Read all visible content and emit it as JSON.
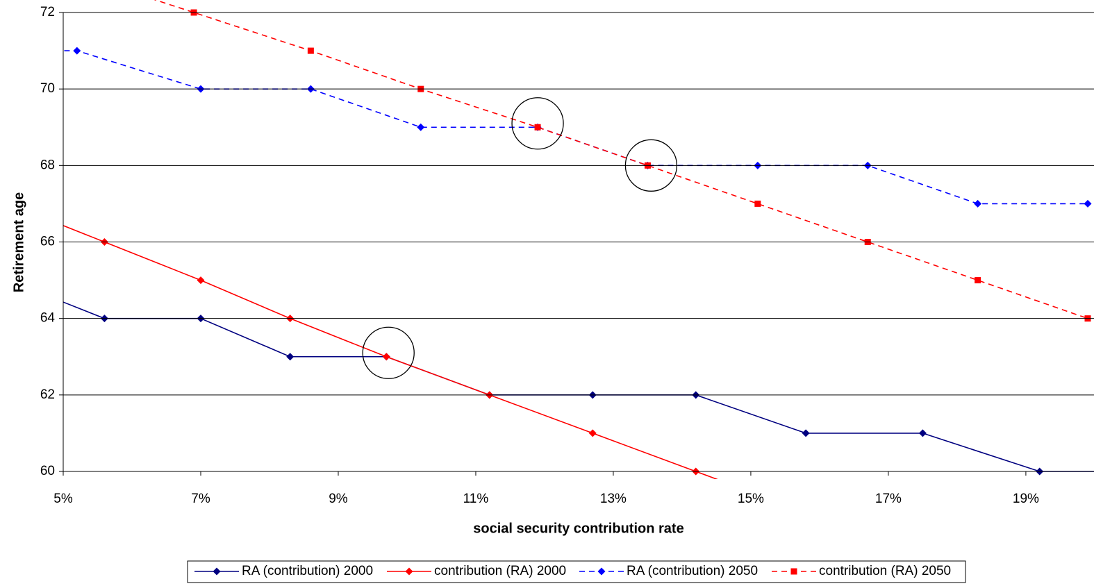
{
  "chart_data": {
    "type": "line",
    "x_label": "social security contribution rate",
    "y_label": "Retirement age",
    "xlim": [
      5,
      19.9
    ],
    "ylim": [
      60,
      72
    ],
    "xticks": [
      {
        "value": 5,
        "label": "5%"
      },
      {
        "value": 7,
        "label": "7%"
      },
      {
        "value": 9,
        "label": "9%"
      },
      {
        "value": 11,
        "label": "11%"
      },
      {
        "value": 13,
        "label": "13%"
      },
      {
        "value": 15,
        "label": "15%"
      },
      {
        "value": 17,
        "label": "17%"
      },
      {
        "value": 19,
        "label": "19%"
      }
    ],
    "yticks": [
      60,
      62,
      64,
      66,
      68,
      70,
      72
    ],
    "grid": true,
    "legend": "bottom",
    "series": [
      {
        "name": "RA (contribution) 2000",
        "color": "#000080",
        "dash": false,
        "marker": "diamond",
        "x": [
          4.2,
          5.6,
          7.0,
          8.3,
          9.7,
          11.2,
          12.7,
          14.2,
          15.8,
          17.5,
          19.2,
          20.8
        ],
        "values": [
          65,
          64,
          64,
          63,
          63,
          62,
          62,
          62,
          61,
          61,
          60,
          60
        ]
      },
      {
        "name": "contribution (RA) 2000",
        "color": "#ff0000",
        "dash": false,
        "marker": "diamond",
        "x": [
          4.2,
          5.6,
          7.0,
          8.3,
          9.7,
          11.2,
          12.7,
          14.2,
          15.7
        ],
        "values": [
          67,
          66,
          65,
          64,
          63,
          62,
          61,
          60,
          59
        ]
      },
      {
        "name": "RA (contribution) 2050",
        "color": "#0000ff",
        "dash": true,
        "marker": "diamond",
        "x": [
          3.6,
          5.2,
          7.0,
          8.6,
          10.2,
          11.9,
          13.5,
          15.1,
          16.7,
          18.3,
          19.9
        ],
        "values": [
          71,
          71,
          70,
          70,
          69,
          69,
          68,
          68,
          68,
          67,
          67
        ]
      },
      {
        "name": "contribution (RA) 2050",
        "color": "#ff0000",
        "dash": true,
        "marker": "square",
        "x": [
          5.2,
          6.9,
          8.6,
          10.2,
          11.9,
          13.5,
          15.1,
          16.7,
          18.3,
          19.9
        ],
        "values": [
          73,
          72,
          71,
          70,
          69,
          68,
          67,
          66,
          65,
          64
        ]
      }
    ],
    "circles": {
      "x": [
        9.73,
        11.9,
        13.55
      ],
      "values": [
        63.1,
        69.1,
        68.0
      ]
    }
  }
}
